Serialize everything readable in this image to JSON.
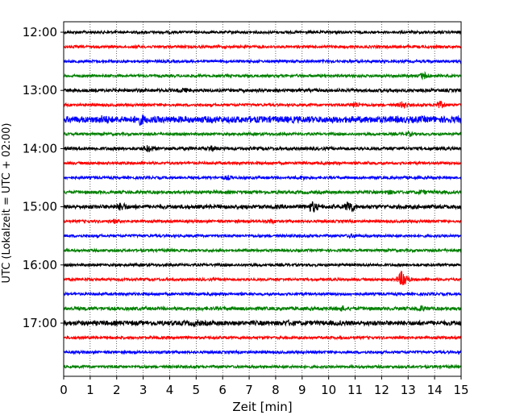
{
  "chart_data": {
    "type": "line",
    "title": "",
    "xlabel": "Zeit  [min]",
    "ylabel": "UTC (Lokalzeit = UTC + 02:00)",
    "xlim": [
      0,
      15
    ],
    "x_ticks": [
      "0",
      "1",
      "2",
      "3",
      "4",
      "5",
      "6",
      "7",
      "8",
      "9",
      "10",
      "11",
      "12",
      "13",
      "14",
      "15"
    ],
    "y_tick_labels": [
      "12:00",
      "13:00",
      "14:00",
      "15:00",
      "16:00",
      "17:00"
    ],
    "rows_per_hour": 4,
    "row_minutes": 15,
    "grid": "vertical dotted at each minute",
    "color_cycle": [
      "#000000",
      "#ff0000",
      "#0000ff",
      "#008000"
    ],
    "traces": [
      {
        "start": "12:00",
        "amplitude": 1.0,
        "bursts": [
          {
            "min": 3.0,
            "amp": 1.2
          },
          {
            "min": 4.0,
            "amp": 1.2
          }
        ]
      },
      {
        "start": "12:15",
        "amplitude": 1.0,
        "bursts": [
          {
            "min": 2.7,
            "amp": 1.2
          }
        ]
      },
      {
        "start": "12:30",
        "amplitude": 1.0,
        "bursts": [
          {
            "min": 2.0,
            "amp": 1.1
          }
        ]
      },
      {
        "start": "12:45",
        "amplitude": 1.0,
        "bursts": [
          {
            "min": 13.6,
            "amp": 3.0
          }
        ]
      },
      {
        "start": "13:00",
        "amplitude": 1.2,
        "bursts": [
          {
            "min": 4.5,
            "amp": 2.2
          }
        ]
      },
      {
        "start": "13:15",
        "amplitude": 1.0,
        "bursts": [
          {
            "min": 11.0,
            "amp": 2.5
          },
          {
            "min": 12.8,
            "amp": 3.0
          },
          {
            "min": 14.2,
            "amp": 3.0
          }
        ]
      },
      {
        "start": "13:30",
        "amplitude": 2.5,
        "bursts": [
          {
            "min": 1.5,
            "amp": 3.5
          },
          {
            "min": 2.9,
            "amp": 4.5
          },
          {
            "min": 8.5,
            "amp": 2.5
          }
        ]
      },
      {
        "start": "13:45",
        "amplitude": 1.0,
        "bursts": [
          {
            "min": 13.0,
            "amp": 2.0
          }
        ]
      },
      {
        "start": "14:00",
        "amplitude": 1.2,
        "bursts": [
          {
            "min": 3.2,
            "amp": 3.0
          },
          {
            "min": 5.6,
            "amp": 2.5
          }
        ]
      },
      {
        "start": "14:15",
        "amplitude": 1.0,
        "bursts": [
          {
            "min": 11.5,
            "amp": 1.5
          }
        ]
      },
      {
        "start": "14:30",
        "amplitude": 1.0,
        "bursts": [
          {
            "min": 6.2,
            "amp": 2.0
          },
          {
            "min": 9.0,
            "amp": 1.8
          }
        ]
      },
      {
        "start": "14:45",
        "amplitude": 1.2,
        "bursts": [
          {
            "min": 12.3,
            "amp": 2.0
          },
          {
            "min": 13.5,
            "amp": 2.0
          }
        ]
      },
      {
        "start": "15:00",
        "amplitude": 1.5,
        "bursts": [
          {
            "min": 2.2,
            "amp": 3.5
          },
          {
            "min": 9.4,
            "amp": 4.5
          },
          {
            "min": 10.8,
            "amp": 5.0
          }
        ]
      },
      {
        "start": "15:15",
        "amplitude": 1.0,
        "bursts": [
          {
            "min": 1.9,
            "amp": 2.0
          },
          {
            "min": 7.8,
            "amp": 2.0
          }
        ]
      },
      {
        "start": "15:30",
        "amplitude": 1.0,
        "bursts": [
          {
            "min": 10.9,
            "amp": 1.8
          }
        ]
      },
      {
        "start": "15:45",
        "amplitude": 1.0,
        "bursts": []
      },
      {
        "start": "16:00",
        "amplitude": 1.0,
        "bursts": []
      },
      {
        "start": "16:15",
        "amplitude": 1.0,
        "bursts": [
          {
            "min": 12.8,
            "amp": 7.0
          }
        ]
      },
      {
        "start": "16:30",
        "amplitude": 1.0,
        "bursts": []
      },
      {
        "start": "16:45",
        "amplitude": 1.3,
        "bursts": [
          {
            "min": 10.5,
            "amp": 2.5
          },
          {
            "min": 13.5,
            "amp": 2.5
          }
        ]
      },
      {
        "start": "17:00",
        "amplitude": 1.8,
        "bursts": [
          {
            "min": 5.0,
            "amp": 2.5
          },
          {
            "min": 8.5,
            "amp": 2.5
          }
        ]
      },
      {
        "start": "17:15",
        "amplitude": 1.0,
        "bursts": []
      },
      {
        "start": "17:30",
        "amplitude": 1.0,
        "bursts": [
          {
            "min": 3.8,
            "amp": 1.3
          }
        ]
      },
      {
        "start": "17:45",
        "amplitude": 1.0,
        "bursts": []
      }
    ]
  }
}
